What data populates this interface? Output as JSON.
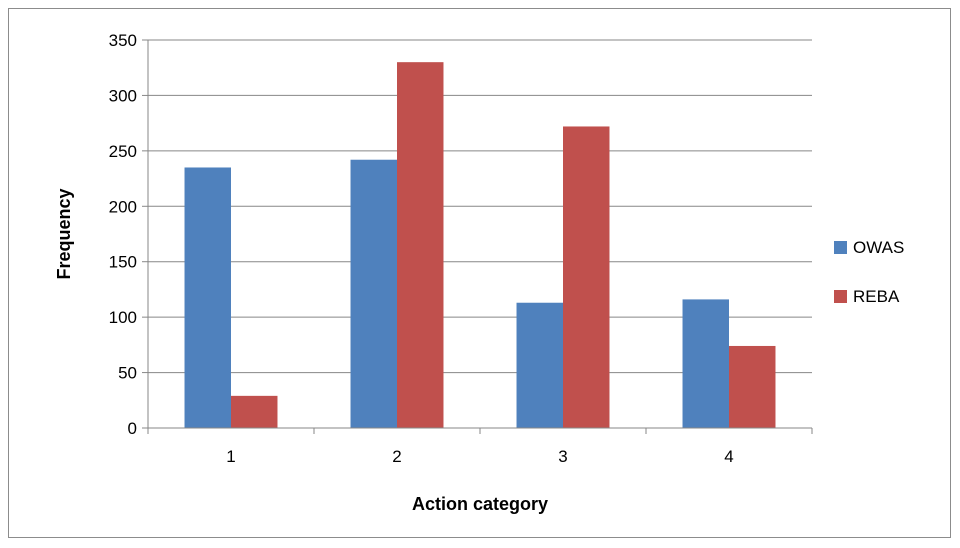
{
  "chart_data": {
    "type": "bar",
    "categories": [
      "1",
      "2",
      "3",
      "4"
    ],
    "series": [
      {
        "name": "OWAS",
        "values": [
          235,
          242,
          113,
          116
        ],
        "color": "#4f81bd"
      },
      {
        "name": "REBA",
        "values": [
          29,
          330,
          272,
          74
        ],
        "color": "#c0504d"
      }
    ],
    "title": "",
    "xlabel": "Action category",
    "ylabel": "Frequency",
    "ylim": [
      0,
      350
    ],
    "yticks": [
      0,
      50,
      100,
      150,
      200,
      250,
      300,
      350
    ],
    "grid": true,
    "legend_position": "right"
  }
}
